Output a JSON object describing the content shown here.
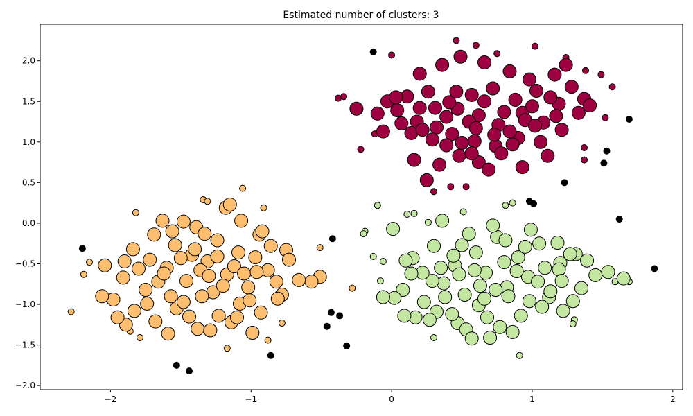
{
  "chart_data": {
    "type": "scatter",
    "title": "Estimated number of clusters: 3",
    "xlabel": "",
    "ylabel": "",
    "xlim": [
      -2.5,
      2.07
    ],
    "ylim": [
      -2.05,
      2.45
    ],
    "x_ticks": [
      -2,
      -1,
      0,
      1,
      2
    ],
    "x_tick_labels": [
      "−2",
      "−1",
      "0",
      "1",
      "2"
    ],
    "y_ticks": [
      -2.0,
      -1.5,
      -1.0,
      -0.5,
      0.0,
      0.5,
      1.0,
      1.5,
      2.0
    ],
    "y_tick_labels": [
      "−2.0",
      "−1.5",
      "−1.0",
      "−0.5",
      "0.0",
      "0.5",
      "1.0",
      "1.5",
      "2.0"
    ],
    "grid": false,
    "legend": "none",
    "series": [
      {
        "color": "#9e0142",
        "core_samples": [
          [
            0.04,
            1.39
          ],
          [
            0.18,
            1.25
          ],
          [
            0.32,
            1.18
          ],
          [
            0.47,
            1.41
          ],
          [
            0.62,
            1.33
          ],
          [
            0.76,
            1.21
          ],
          [
            0.93,
            1.36
          ],
          [
            1.08,
            1.24
          ],
          [
            0.11,
            1.56
          ],
          [
            0.26,
            1.62
          ],
          [
            0.41,
            1.49
          ],
          [
            0.57,
            1.58
          ],
          [
            0.72,
            1.66
          ],
          [
            0.88,
            1.52
          ],
          [
            1.03,
            1.63
          ],
          [
            1.19,
            1.47
          ],
          [
            -0.1,
            1.35
          ],
          [
            -0.03,
            1.5
          ],
          [
            0.14,
            1.11
          ],
          [
            0.29,
            1.03
          ],
          [
            0.43,
            1.1
          ],
          [
            0.59,
            1.01
          ],
          [
            0.74,
            0.95
          ],
          [
            0.9,
            1.05
          ],
          [
            1.06,
            1.0
          ],
          [
            1.21,
            1.15
          ],
          [
            1.33,
            1.36
          ],
          [
            1.37,
            1.53
          ],
          [
            1.28,
            1.68
          ],
          [
            0.2,
            1.84
          ],
          [
            0.36,
            1.95
          ],
          [
            0.49,
            2.05
          ],
          [
            0.66,
            1.98
          ],
          [
            0.84,
            1.87
          ],
          [
            0.98,
            1.77
          ],
          [
            1.16,
            1.83
          ],
          [
            0.34,
            0.72
          ],
          [
            0.48,
            0.83
          ],
          [
            0.62,
            0.75
          ],
          [
            0.78,
            0.86
          ],
          [
            0.93,
            0.69
          ],
          [
            1.11,
            0.83
          ],
          [
            0.25,
            0.53
          ],
          [
            0.69,
            0.66
          ],
          [
            0.55,
            1.25
          ],
          [
            0.39,
            1.31
          ],
          [
            0.84,
            1.13
          ],
          [
            1.0,
            1.44
          ],
          [
            -0.25,
            1.41
          ],
          [
            0.07,
            1.23
          ],
          [
            0.2,
            1.42
          ],
          [
            0.5,
            0.99
          ],
          [
            0.66,
            1.5
          ],
          [
            0.8,
            1.37
          ],
          [
            1.17,
            1.32
          ],
          [
            1.24,
            1.95
          ],
          [
            0.03,
            1.55
          ],
          [
            0.31,
            1.42
          ],
          [
            0.46,
            1.62
          ],
          [
            0.6,
            1.17
          ],
          [
            0.73,
            1.09
          ],
          [
            0.95,
            1.27
          ],
          [
            1.13,
            1.55
          ],
          [
            0.16,
            0.78
          ],
          [
            0.39,
            0.96
          ],
          [
            0.86,
            0.97
          ],
          [
            1.41,
            1.45
          ],
          [
            -0.06,
            1.13
          ],
          [
            0.22,
            1.15
          ],
          [
            0.57,
            0.86
          ],
          [
            1.02,
            1.2
          ]
        ],
        "edge_points": [
          [
            0.3,
            0.39
          ],
          [
            0.42,
            0.45
          ],
          [
            0.53,
            0.45
          ],
          [
            0.0,
            2.07
          ],
          [
            0.6,
            2.19
          ],
          [
            0.46,
            2.25
          ],
          [
            0.75,
            2.09
          ],
          [
            1.02,
            2.18
          ],
          [
            1.24,
            2.04
          ],
          [
            1.38,
            1.88
          ],
          [
            1.49,
            1.83
          ],
          [
            1.57,
            1.68
          ],
          [
            -0.38,
            1.54
          ],
          [
            -0.34,
            1.56
          ],
          [
            -0.22,
            0.91
          ],
          [
            1.37,
            0.93
          ],
          [
            1.37,
            0.78
          ],
          [
            -0.12,
            1.1
          ],
          [
            1.52,
            1.3
          ]
        ]
      },
      {
        "color": "#fdbf6f",
        "core_samples": [
          [
            -1.91,
            -0.67
          ],
          [
            -1.75,
            -0.82
          ],
          [
            -1.6,
            -0.55
          ],
          [
            -1.46,
            -0.71
          ],
          [
            -1.31,
            -0.47
          ],
          [
            -1.17,
            -0.63
          ],
          [
            -1.02,
            -0.79
          ],
          [
            -0.88,
            -0.58
          ],
          [
            -1.84,
            -0.32
          ],
          [
            -1.69,
            -0.14
          ],
          [
            -1.54,
            -0.27
          ],
          [
            -1.39,
            -0.05
          ],
          [
            -1.24,
            -0.21
          ],
          [
            -1.09,
            -0.36
          ],
          [
            -0.94,
            -0.14
          ],
          [
            -1.98,
            -0.94
          ],
          [
            -1.83,
            -1.08
          ],
          [
            -1.68,
            -1.21
          ],
          [
            -1.53,
            -1.05
          ],
          [
            -1.38,
            -1.3
          ],
          [
            -1.23,
            -1.14
          ],
          [
            -1.08,
            -0.99
          ],
          [
            -0.93,
            -1.1
          ],
          [
            -0.78,
            -0.88
          ],
          [
            -2.04,
            -0.52
          ],
          [
            -1.72,
            -0.45
          ],
          [
            -1.57,
            -0.9
          ],
          [
            -1.42,
            -0.39
          ],
          [
            -1.27,
            -0.85
          ],
          [
            -1.12,
            -0.53
          ],
          [
            -0.97,
            -0.42
          ],
          [
            -0.82,
            -0.72
          ],
          [
            -1.63,
            0.03
          ],
          [
            -1.48,
            0.02
          ],
          [
            -1.33,
            -0.13
          ],
          [
            -1.18,
            0.19
          ],
          [
            -1.07,
            0.03
          ],
          [
            -0.92,
            -0.1
          ],
          [
            -1.89,
            -1.25
          ],
          [
            -1.74,
            -0.99
          ],
          [
            -1.59,
            -1.36
          ],
          [
            -1.44,
            -1.15
          ],
          [
            -1.29,
            -1.32
          ],
          [
            -1.14,
            -1.22
          ],
          [
            -0.99,
            -1.35
          ],
          [
            -0.75,
            -0.33
          ],
          [
            -0.73,
            -0.45
          ],
          [
            -0.51,
            -0.66
          ],
          [
            -0.57,
            -0.72
          ],
          [
            -2.06,
            -0.9
          ],
          [
            -1.95,
            -1.16
          ],
          [
            -1.36,
            -0.58
          ],
          [
            -1.2,
            -0.77
          ],
          [
            -0.86,
            -0.28
          ],
          [
            -1.8,
            -0.56
          ],
          [
            -1.66,
            -0.72
          ],
          [
            -1.5,
            -0.43
          ],
          [
            -1.35,
            -0.9
          ],
          [
            -1.05,
            -0.62
          ],
          [
            -0.96,
            -0.6
          ],
          [
            -1.15,
            0.23
          ],
          [
            -1.56,
            -0.1
          ],
          [
            -1.4,
            -0.32
          ],
          [
            -1.24,
            -0.41
          ],
          [
            -1.1,
            -1.16
          ],
          [
            -0.81,
            -0.93
          ],
          [
            -1.9,
            -0.47
          ],
          [
            -1.62,
            -0.62
          ],
          [
            -1.48,
            -0.97
          ],
          [
            -1.3,
            -0.65
          ],
          [
            -1.01,
            -0.95
          ],
          [
            -0.66,
            -0.7
          ]
        ],
        "edge_points": [
          [
            -1.82,
            0.13
          ],
          [
            -1.34,
            0.29
          ],
          [
            -1.06,
            0.43
          ],
          [
            -0.91,
            0.19
          ],
          [
            -2.15,
            -0.48
          ],
          [
            -2.19,
            -0.63
          ],
          [
            -2.28,
            -1.09
          ],
          [
            -2.03,
            -0.49
          ],
          [
            -1.86,
            -1.33
          ],
          [
            -1.79,
            -1.41
          ],
          [
            -1.17,
            -1.54
          ],
          [
            -0.88,
            -1.44
          ],
          [
            -0.78,
            -1.23
          ],
          [
            -0.51,
            -0.3
          ],
          [
            -0.28,
            -0.8
          ],
          [
            -1.31,
            0.27
          ]
        ]
      },
      {
        "color": "#c3e6a0",
        "core_samples": [
          [
            0.08,
            -0.82
          ],
          [
            0.23,
            -0.97
          ],
          [
            0.37,
            -0.74
          ],
          [
            0.52,
            -0.88
          ],
          [
            0.67,
            -0.61
          ],
          [
            0.82,
            -0.79
          ],
          [
            0.97,
            -0.66
          ],
          [
            1.12,
            -0.91
          ],
          [
            0.15,
            -0.43
          ],
          [
            0.3,
            -0.28
          ],
          [
            0.45,
            -0.52
          ],
          [
            0.6,
            -0.36
          ],
          [
            0.75,
            -0.17
          ],
          [
            0.9,
            -0.42
          ],
          [
            1.05,
            -0.25
          ],
          [
            1.2,
            -0.49
          ],
          [
            0.02,
            -0.92
          ],
          [
            0.17,
            -1.16
          ],
          [
            0.32,
            -1.09
          ],
          [
            0.47,
            -1.23
          ],
          [
            0.62,
            -1.01
          ],
          [
            0.77,
            -1.28
          ],
          [
            0.92,
            -1.14
          ],
          [
            1.07,
            -1.03
          ],
          [
            1.22,
            -1.08
          ],
          [
            1.35,
            -0.8
          ],
          [
            1.45,
            -0.64
          ],
          [
            1.31,
            -0.38
          ],
          [
            0.36,
            0.03
          ],
          [
            0.55,
            -0.13
          ],
          [
            0.72,
            -0.03
          ],
          [
            0.99,
            -0.08
          ],
          [
            1.18,
            -0.24
          ],
          [
            0.29,
            -0.71
          ],
          [
            0.44,
            -0.4
          ],
          [
            0.59,
            -0.58
          ],
          [
            0.74,
            -0.82
          ],
          [
            0.89,
            -0.59
          ],
          [
            1.04,
            -0.72
          ],
          [
            1.19,
            -0.57
          ],
          [
            0.1,
            -0.46
          ],
          [
            0.22,
            -0.61
          ],
          [
            0.38,
            -0.91
          ],
          [
            0.53,
            -1.31
          ],
          [
            0.68,
            -1.16
          ],
          [
            0.83,
            -0.9
          ],
          [
            0.98,
            -0.96
          ],
          [
            1.29,
            -0.96
          ],
          [
            1.54,
            -0.6
          ],
          [
            1.65,
            -0.68
          ],
          [
            1.39,
            -0.46
          ],
          [
            0.01,
            -0.07
          ],
          [
            0.09,
            -1.14
          ],
          [
            0.27,
            -1.19
          ],
          [
            0.43,
            -1.12
          ],
          [
            0.57,
            -1.42
          ],
          [
            0.7,
            -1.41
          ],
          [
            0.86,
            -1.34
          ],
          [
            1.21,
            -0.71
          ],
          [
            1.27,
            -0.38
          ],
          [
            -0.06,
            -0.91
          ],
          [
            0.14,
            -0.62
          ],
          [
            0.48,
            -0.63
          ],
          [
            0.63,
            -0.77
          ],
          [
            0.8,
            -0.48
          ],
          [
            0.95,
            -0.29
          ],
          [
            1.09,
            -0.55
          ],
          [
            0.35,
            -0.55
          ],
          [
            0.5,
            -0.27
          ],
          [
            0.66,
            -0.93
          ],
          [
            0.81,
            -0.21
          ],
          [
            1.13,
            -0.84
          ]
        ],
        "edge_points": [
          [
            -0.1,
            0.22
          ],
          [
            0.11,
            0.11
          ],
          [
            0.16,
            0.12
          ],
          [
            0.26,
            0.01
          ],
          [
            0.51,
            0.14
          ],
          [
            0.81,
            0.22
          ],
          [
            0.86,
            0.25
          ],
          [
            -0.19,
            -0.1
          ],
          [
            -0.2,
            -0.13
          ],
          [
            -0.13,
            -0.41
          ],
          [
            -0.06,
            -0.47
          ],
          [
            -0.08,
            -0.71
          ],
          [
            0.3,
            -1.41
          ],
          [
            0.91,
            -1.63
          ],
          [
            1.3,
            -1.19
          ],
          [
            1.29,
            -1.24
          ],
          [
            1.59,
            -0.72
          ],
          [
            1.69,
            -0.72
          ]
        ]
      }
    ],
    "noise": {
      "color": "#000000",
      "points": [
        [
          -0.13,
          2.11
        ],
        [
          1.69,
          1.28
        ],
        [
          1.53,
          0.89
        ],
        [
          1.51,
          0.74
        ],
        [
          1.23,
          0.5
        ],
        [
          0.98,
          0.27
        ],
        [
          1.01,
          0.24
        ],
        [
          1.62,
          0.05
        ],
        [
          1.87,
          -0.56
        ],
        [
          -0.42,
          -0.19
        ],
        [
          -2.2,
          -0.31
        ],
        [
          -0.43,
          -1.1
        ],
        [
          -0.37,
          -1.14
        ],
        [
          -0.46,
          -1.27
        ],
        [
          -0.32,
          -1.51
        ],
        [
          -1.53,
          -1.75
        ],
        [
          -1.44,
          -1.82
        ],
        [
          -0.86,
          -1.63
        ]
      ]
    }
  }
}
